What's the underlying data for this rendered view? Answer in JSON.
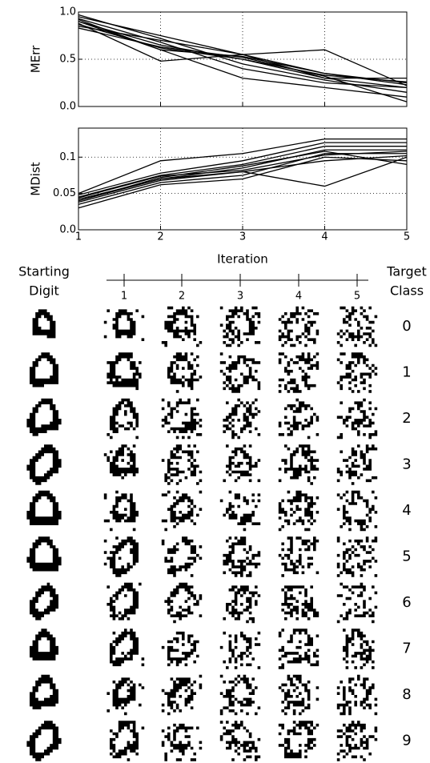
{
  "chart_data": [
    {
      "type": "line",
      "ylabel": "MErr",
      "color": "#000000",
      "grid": true,
      "x": [
        1,
        2,
        3,
        4,
        5
      ],
      "xlim": [
        1,
        5
      ],
      "xticks": [
        1,
        2,
        3,
        4,
        5
      ],
      "ylim": [
        0,
        1
      ],
      "yticks": [
        {
          "value": 0,
          "label": "0.0"
        },
        0.5,
        {
          "value": 1,
          "label": "1.0"
        }
      ],
      "series": [
        {
          "values": [
            0.95,
            0.75,
            0.55,
            0.35,
            0.25
          ]
        },
        {
          "values": [
            0.9,
            0.65,
            0.5,
            0.3,
            0.2
          ]
        },
        {
          "values": [
            0.88,
            0.48,
            0.55,
            0.6,
            0.22
          ]
        },
        {
          "values": [
            0.92,
            0.6,
            0.3,
            0.2,
            0.1
          ]
        },
        {
          "values": [
            0.85,
            0.7,
            0.55,
            0.3,
            0.3
          ]
        },
        {
          "values": [
            0.97,
            0.72,
            0.45,
            0.28,
            0.15
          ]
        },
        {
          "values": [
            0.83,
            0.63,
            0.52,
            0.32,
            0.05
          ]
        },
        {
          "values": [
            0.9,
            0.6,
            0.53,
            0.35,
            0.23
          ]
        },
        {
          "values": [
            0.93,
            0.68,
            0.4,
            0.25,
            0.2
          ]
        },
        {
          "values": [
            0.87,
            0.62,
            0.5,
            0.33,
            0.26
          ]
        }
      ]
    },
    {
      "type": "line",
      "ylabel": "MDist",
      "xlabel": "Iteration",
      "color": "#000000",
      "grid": true,
      "x": [
        1,
        2,
        3,
        4,
        5
      ],
      "xlim": [
        1,
        5
      ],
      "xticks": [
        1,
        2,
        3,
        4,
        5
      ],
      "ylim": [
        0,
        0.14
      ],
      "yticks": [
        {
          "value": 0,
          "label": "0.0"
        },
        0.05,
        0.1
      ],
      "series": [
        {
          "values": [
            0.05,
            0.095,
            0.105,
            0.125,
            0.125
          ]
        },
        {
          "values": [
            0.045,
            0.075,
            0.09,
            0.115,
            0.115
          ]
        },
        {
          "values": [
            0.04,
            0.07,
            0.085,
            0.11,
            0.11
          ]
        },
        {
          "values": [
            0.035,
            0.065,
            0.075,
            0.105,
            0.105
          ]
        },
        {
          "values": [
            0.03,
            0.062,
            0.07,
            0.1,
            0.095
          ]
        },
        {
          "values": [
            0.042,
            0.07,
            0.08,
            0.06,
            0.1
          ]
        },
        {
          "values": [
            0.048,
            0.078,
            0.095,
            0.12,
            0.12
          ]
        },
        {
          "values": [
            0.04,
            0.072,
            0.088,
            0.108,
            0.09
          ]
        },
        {
          "values": [
            0.038,
            0.068,
            0.08,
            0.095,
            0.102
          ]
        },
        {
          "values": [
            0.044,
            0.074,
            0.082,
            0.103,
            0.108
          ]
        }
      ]
    }
  ],
  "digit_grid": {
    "starting_label": [
      "Starting",
      "Digit"
    ],
    "target_label": [
      "Target",
      "Class"
    ],
    "iterations": [
      1,
      2,
      3,
      4,
      5
    ],
    "target_classes": [
      0,
      1,
      2,
      3,
      4,
      5,
      6,
      7,
      8,
      9
    ]
  }
}
